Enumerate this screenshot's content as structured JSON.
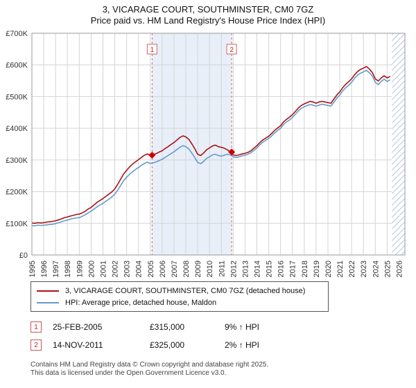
{
  "page": {
    "title": "3, VICARAGE COURT, SOUTHMINSTER, CM0 7GZ",
    "subtitle": "Price paid vs. HM Land Registry's House Price Index (HPI)",
    "footer_line1": "Contains HM Land Registry data © Crown copyright and database right 2025.",
    "footer_line2": "This data is licensed under the Open Government Licence v3.0."
  },
  "chart_data": {
    "type": "line",
    "title": "3, VICARAGE COURT, SOUTHMINSTER, CM0 7GZ",
    "subtitle": "Price paid vs. HM Land Registry's House Price Index (HPI)",
    "xlim": [
      1995,
      2026.5
    ],
    "ylim": [
      0,
      700
    ],
    "y_unit": "GBP thousands",
    "y_tick_step": 100,
    "y_tick_labels": [
      "£0",
      "£100K",
      "£200K",
      "£300K",
      "£400K",
      "£500K",
      "£600K",
      "£700K"
    ],
    "x_tick_years": [
      1995,
      1996,
      1997,
      1998,
      1999,
      2000,
      2001,
      2002,
      2003,
      2004,
      2005,
      2006,
      2007,
      2008,
      2009,
      2010,
      2011,
      2012,
      2013,
      2014,
      2015,
      2016,
      2017,
      2018,
      2019,
      2020,
      2021,
      2022,
      2023,
      2024,
      2025,
      2026
    ],
    "x_start": 1995,
    "x_step": 0.25,
    "hatch_from": 2025.4,
    "legend_position": "bottom",
    "grid": true,
    "colors": {
      "property": "#aa1111",
      "hpi": "#6699cc",
      "shade": "#e8eff9",
      "sale_line": "#cc6666",
      "sale_marker": "#cc0000",
      "sale_number": "#cc2222",
      "grid": "#d4d4d4",
      "border": "#999999",
      "hatch": "#b8c4d8"
    },
    "series": [
      {
        "name": "3, VICARAGE COURT, SOUTHMINSTER, CM0 7GZ (detached house)",
        "color": "#aa1111",
        "values": [
          101,
          100,
          102,
          101,
          102,
          104,
          105,
          106,
          108,
          111,
          114,
          118,
          120,
          123,
          125,
          128,
          129,
          133,
          138,
          145,
          150,
          158,
          166,
          172,
          178,
          185,
          192,
          199,
          209,
          223,
          240,
          256,
          267,
          278,
          287,
          294,
          301,
          308,
          315,
          319,
          315,
          317,
          320,
          325,
          329,
          336,
          342,
          349,
          355,
          363,
          371,
          376,
          373,
          365,
          351,
          336,
          318,
          314,
          322,
          332,
          338,
          344,
          347,
          342,
          340,
          337,
          332,
          325,
          316,
          314,
          316,
          319,
          321,
          324,
          329,
          337,
          345,
          355,
          363,
          369,
          375,
          384,
          393,
          401,
          408,
          420,
          428,
          435,
          443,
          453,
          464,
          472,
          477,
          481,
          485,
          483,
          479,
          483,
          485,
          483,
          481,
          479,
          492,
          505,
          515,
          528,
          539,
          547,
          556,
          569,
          579,
          586,
          590,
          595,
          587,
          576,
          556,
          549,
          559,
          566,
          559,
          564
        ]
      },
      {
        "name": "HPI: Average price, detached house, Maldon",
        "color": "#6699cc",
        "values": [
          93,
          92,
          94,
          93,
          94,
          95,
          96,
          97,
          99,
          102,
          105,
          108,
          110,
          113,
          115,
          117,
          118,
          122,
          127,
          133,
          138,
          145,
          152,
          158,
          163,
          170,
          176,
          183,
          192,
          205,
          220,
          235,
          245,
          255,
          263,
          270,
          276,
          283,
          289,
          293,
          289,
          291,
          294,
          298,
          302,
          308,
          314,
          320,
          326,
          333,
          340,
          345,
          342,
          335,
          322,
          308,
          292,
          288,
          295,
          305,
          310,
          316,
          318,
          314,
          312,
          315,
          318,
          316,
          310,
          308,
          310,
          313,
          315,
          318,
          323,
          330,
          338,
          348,
          356,
          362,
          368,
          376,
          385,
          393,
          400,
          412,
          420,
          426,
          434,
          444,
          455,
          463,
          468,
          472,
          475,
          473,
          470,
          473,
          476,
          474,
          472,
          470,
          482,
          495,
          505,
          518,
          528,
          536,
          545,
          558,
          568,
          574,
          578,
          583,
          575,
          565,
          545,
          538,
          548,
          555,
          548,
          553
        ]
      }
    ],
    "sales": [
      {
        "n": "1",
        "x": 2005.15,
        "y": 315,
        "date": "25-FEB-2005",
        "price": "£315,000",
        "hpi_delta": "9% ↑ HPI"
      },
      {
        "n": "2",
        "x": 2011.87,
        "y": 325,
        "date": "14-NOV-2011",
        "price": "£325,000",
        "hpi_delta": "2% ↑ HPI"
      }
    ]
  }
}
